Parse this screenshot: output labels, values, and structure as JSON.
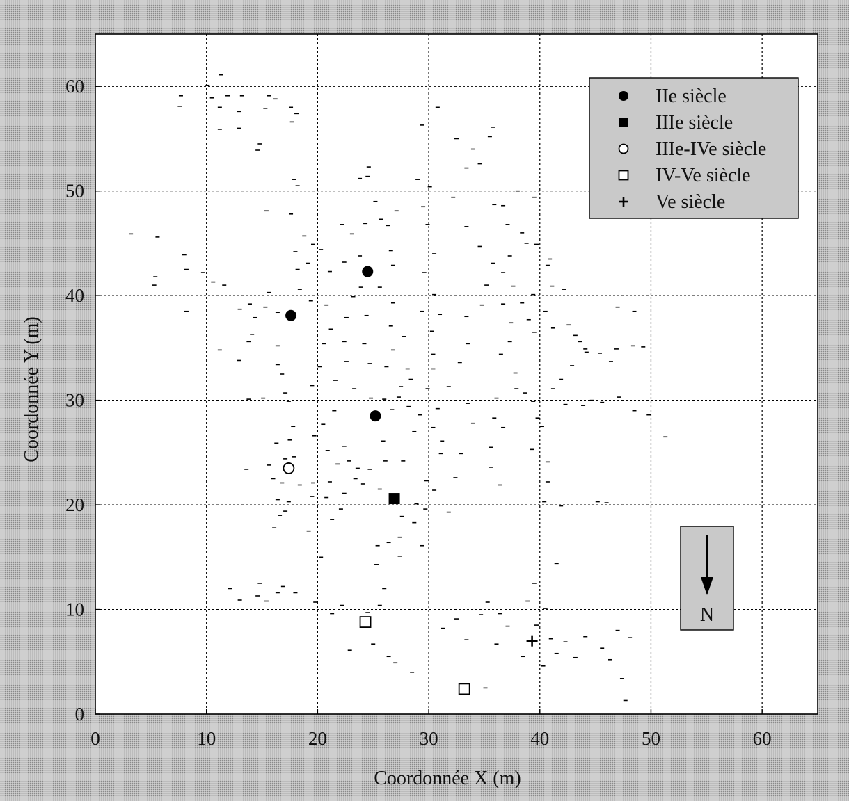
{
  "chart_data": {
    "type": "scatter",
    "title": "",
    "xlabel": "Coordonnée X (m)",
    "ylabel": "Coordonnée Y (m)",
    "xlim": [
      0,
      65
    ],
    "ylim": [
      0,
      65
    ],
    "xticks": [
      0,
      10,
      20,
      30,
      40,
      50,
      60
    ],
    "yticks": [
      0,
      10,
      20,
      30,
      40,
      50,
      60
    ],
    "grid": true,
    "legend_position": "top-right",
    "colors": {
      "marker": "#000000",
      "plot_bg": "#ffffff",
      "grid": "#000000"
    },
    "series": [
      {
        "name": "IIe siècle",
        "marker": "filled-circle",
        "points": [
          [
            17.6,
            38.1
          ],
          [
            24.5,
            42.3
          ],
          [
            25.2,
            28.5
          ]
        ]
      },
      {
        "name": "IIIe siècle",
        "marker": "filled-square",
        "points": [
          [
            26.9,
            20.6
          ]
        ]
      },
      {
        "name": "IIIe-IVe siècle",
        "marker": "open-circle",
        "points": [
          [
            17.4,
            23.5
          ]
        ]
      },
      {
        "name": "IV-Ve siècle",
        "marker": "open-square",
        "points": [
          [
            24.3,
            8.8
          ],
          [
            33.2,
            2.4
          ]
        ]
      },
      {
        "name": "Ve siècle",
        "marker": "plus",
        "points": [
          [
            39.3,
            7.0
          ]
        ]
      }
    ],
    "background_dashes": [
      [
        11.3,
        61.1
      ],
      [
        10.1,
        60.1
      ],
      [
        11.9,
        59.1
      ],
      [
        7.7,
        59.1
      ],
      [
        13.2,
        59.1
      ],
      [
        15.6,
        59.1
      ],
      [
        10.5,
        58.9
      ],
      [
        16.2,
        58.8
      ],
      [
        7.6,
        58.1
      ],
      [
        11.2,
        58.0
      ],
      [
        12.9,
        57.6
      ],
      [
        15.3,
        57.9
      ],
      [
        17.6,
        58.0
      ],
      [
        18.1,
        57.4
      ],
      [
        11.2,
        55.9
      ],
      [
        12.9,
        56.0
      ],
      [
        17.7,
        56.6
      ],
      [
        14.8,
        54.5
      ],
      [
        14.6,
        53.9
      ],
      [
        17.9,
        51.1
      ],
      [
        18.2,
        50.5
      ],
      [
        15.4,
        48.1
      ],
      [
        17.6,
        47.8
      ],
      [
        3.2,
        45.9
      ],
      [
        5.6,
        45.6
      ],
      [
        8.0,
        43.9
      ],
      [
        5.4,
        41.8
      ],
      [
        5.3,
        41.0
      ],
      [
        8.2,
        42.5
      ],
      [
        9.7,
        42.2
      ],
      [
        10.6,
        41.3
      ],
      [
        11.6,
        41.0
      ],
      [
        8.2,
        38.5
      ],
      [
        13.0,
        38.7
      ],
      [
        11.2,
        34.8
      ],
      [
        12.9,
        33.8
      ],
      [
        13.8,
        35.6
      ],
      [
        13.9,
        39.2
      ],
      [
        14.4,
        37.9
      ],
      [
        14.1,
        36.3
      ],
      [
        15.3,
        38.9
      ],
      [
        16.4,
        38.4
      ],
      [
        15.6,
        40.3
      ],
      [
        16.4,
        35.2
      ],
      [
        13.8,
        30.1
      ],
      [
        15.1,
        30.2
      ],
      [
        16.4,
        33.4
      ],
      [
        16.8,
        32.5
      ],
      [
        17.1,
        30.7
      ],
      [
        17.4,
        29.9
      ],
      [
        15.6,
        23.8
      ],
      [
        13.6,
        23.4
      ],
      [
        16.0,
        22.5
      ],
      [
        16.3,
        25.9
      ],
      [
        17.5,
        26.2
      ],
      [
        17.1,
        24.4
      ],
      [
        17.8,
        27.5
      ],
      [
        16.8,
        22.1
      ],
      [
        16.4,
        20.5
      ],
      [
        16.6,
        19.0
      ],
      [
        16.1,
        17.8
      ],
      [
        17.1,
        19.4
      ],
      [
        17.4,
        20.3
      ],
      [
        18.4,
        21.9
      ],
      [
        17.9,
        24.6
      ],
      [
        19.7,
        26.6
      ],
      [
        19.6,
        22.1
      ],
      [
        19.5,
        20.8
      ],
      [
        18.4,
        40.6
      ],
      [
        18.2,
        42.5
      ],
      [
        18.0,
        44.2
      ],
      [
        19.1,
        43.1
      ],
      [
        19.6,
        44.9
      ],
      [
        18.8,
        45.7
      ],
      [
        20.3,
        44.4
      ],
      [
        21.1,
        42.3
      ],
      [
        19.4,
        39.5
      ],
      [
        20.8,
        39.1
      ],
      [
        21.2,
        36.8
      ],
      [
        20.6,
        35.4
      ],
      [
        20.2,
        33.2
      ],
      [
        19.5,
        31.4
      ],
      [
        21.6,
        31.9
      ],
      [
        22.6,
        33.7
      ],
      [
        22.4,
        35.6
      ],
      [
        22.6,
        37.9
      ],
      [
        23.2,
        39.9
      ],
      [
        23.9,
        40.8
      ],
      [
        24.4,
        38.1
      ],
      [
        24.2,
        35.4
      ],
      [
        24.7,
        33.5
      ],
      [
        23.3,
        31.1
      ],
      [
        24.8,
        30.2
      ],
      [
        26.0,
        30.1
      ],
      [
        27.3,
        30.3
      ],
      [
        21.5,
        29.0
      ],
      [
        20.5,
        27.7
      ],
      [
        20.9,
        25.2
      ],
      [
        21.8,
        23.9
      ],
      [
        22.4,
        25.6
      ],
      [
        23.4,
        22.5
      ],
      [
        22.4,
        21.1
      ],
      [
        22.1,
        19.6
      ],
      [
        20.8,
        20.7
      ],
      [
        21.3,
        18.6
      ],
      [
        19.2,
        17.5
      ],
      [
        22.2,
        46.8
      ],
      [
        23.1,
        45.9
      ],
      [
        23.8,
        43.8
      ],
      [
        22.4,
        43.2
      ],
      [
        24.3,
        46.9
      ],
      [
        25.7,
        47.3
      ],
      [
        26.3,
        46.7
      ],
      [
        27.1,
        48.1
      ],
      [
        25.2,
        49.0
      ],
      [
        24.5,
        51.4
      ],
      [
        24.6,
        52.3
      ],
      [
        23.8,
        51.2
      ],
      [
        26.6,
        44.3
      ],
      [
        26.8,
        42.9
      ],
      [
        25.6,
        40.8
      ],
      [
        26.8,
        39.3
      ],
      [
        26.6,
        37.1
      ],
      [
        27.8,
        36.1
      ],
      [
        26.8,
        34.8
      ],
      [
        26.2,
        33.2
      ],
      [
        28.1,
        33.0
      ],
      [
        28.4,
        32.0
      ],
      [
        27.5,
        31.3
      ],
      [
        25.9,
        26.1
      ],
      [
        26.1,
        24.2
      ],
      [
        24.7,
        23.4
      ],
      [
        24.1,
        22.0
      ],
      [
        25.6,
        21.5
      ],
      [
        27.7,
        24.2
      ],
      [
        28.7,
        27.0
      ],
      [
        26.7,
        29.1
      ],
      [
        28.2,
        29.4
      ],
      [
        29.2,
        28.6
      ],
      [
        28.7,
        18.3
      ],
      [
        27.4,
        16.9
      ],
      [
        29.4,
        16.1
      ],
      [
        26.4,
        16.4
      ],
      [
        25.4,
        16.1
      ],
      [
        25.3,
        14.3
      ],
      [
        26.0,
        12.0
      ],
      [
        27.4,
        15.1
      ],
      [
        27.6,
        18.9
      ],
      [
        28.9,
        20.1
      ],
      [
        29.0,
        51.1
      ],
      [
        30.1,
        50.4
      ],
      [
        29.5,
        48.5
      ],
      [
        29.9,
        46.8
      ],
      [
        30.5,
        44.0
      ],
      [
        29.6,
        42.2
      ],
      [
        30.5,
        40.1
      ],
      [
        29.4,
        38.5
      ],
      [
        31.0,
        38.2
      ],
      [
        30.3,
        36.6
      ],
      [
        30.4,
        34.4
      ],
      [
        30.4,
        33.0
      ],
      [
        29.9,
        31.1
      ],
      [
        30.8,
        29.2
      ],
      [
        30.4,
        27.4
      ],
      [
        31.2,
        26.1
      ],
      [
        31.1,
        24.9
      ],
      [
        29.8,
        22.3
      ],
      [
        30.5,
        21.4
      ],
      [
        29.7,
        19.6
      ],
      [
        31.8,
        19.3
      ],
      [
        32.4,
        22.6
      ],
      [
        32.9,
        24.9
      ],
      [
        34.0,
        27.8
      ],
      [
        33.5,
        29.7
      ],
      [
        31.8,
        31.3
      ],
      [
        32.8,
        33.6
      ],
      [
        33.5,
        35.4
      ],
      [
        33.4,
        38.0
      ],
      [
        34.8,
        39.1
      ],
      [
        35.2,
        41.0
      ],
      [
        35.8,
        43.1
      ],
      [
        34.6,
        44.7
      ],
      [
        33.4,
        46.6
      ],
      [
        32.2,
        49.4
      ],
      [
        33.4,
        52.2
      ],
      [
        34.6,
        52.6
      ],
      [
        34.0,
        54.0
      ],
      [
        35.5,
        55.2
      ],
      [
        35.8,
        56.1
      ],
      [
        32.5,
        55.0
      ],
      [
        30.8,
        58.0
      ],
      [
        29.4,
        56.3
      ],
      [
        35.9,
        48.7
      ],
      [
        36.7,
        48.6
      ],
      [
        37.1,
        46.8
      ],
      [
        38.4,
        46.0
      ],
      [
        38.8,
        45.0
      ],
      [
        39.7,
        44.9
      ],
      [
        37.3,
        43.8
      ],
      [
        36.7,
        42.2
      ],
      [
        37.6,
        40.9
      ],
      [
        36.7,
        39.2
      ],
      [
        37.4,
        37.4
      ],
      [
        37.3,
        35.6
      ],
      [
        36.5,
        34.4
      ],
      [
        37.8,
        32.6
      ],
      [
        37.9,
        31.1
      ],
      [
        36.1,
        30.2
      ],
      [
        35.9,
        28.3
      ],
      [
        36.7,
        27.4
      ],
      [
        35.6,
        25.5
      ],
      [
        35.6,
        23.6
      ],
      [
        36.4,
        21.9
      ],
      [
        38.7,
        30.7
      ],
      [
        39.4,
        29.9
      ],
      [
        39.8,
        28.3
      ],
      [
        40.2,
        27.5
      ],
      [
        39.3,
        25.3
      ],
      [
        40.7,
        24.1
      ],
      [
        40.7,
        22.2
      ],
      [
        40.4,
        20.3
      ],
      [
        41.9,
        19.9
      ],
      [
        41.5,
        14.4
      ],
      [
        39.5,
        12.5
      ],
      [
        38.9,
        10.8
      ],
      [
        40.5,
        10.1
      ],
      [
        39.7,
        8.5
      ],
      [
        37.1,
        8.4
      ],
      [
        36.4,
        9.6
      ],
      [
        35.3,
        10.7
      ],
      [
        34.7,
        9.5
      ],
      [
        33.4,
        7.1
      ],
      [
        36.1,
        6.7
      ],
      [
        38.5,
        5.5
      ],
      [
        40.3,
        4.6
      ],
      [
        41.5,
        5.8
      ],
      [
        42.3,
        6.9
      ],
      [
        41.0,
        7.2
      ],
      [
        43.2,
        5.4
      ],
      [
        44.1,
        7.4
      ],
      [
        45.6,
        6.3
      ],
      [
        46.3,
        5.2
      ],
      [
        47.0,
        8.0
      ],
      [
        48.1,
        7.3
      ],
      [
        47.4,
        3.4
      ],
      [
        47.7,
        1.3
      ],
      [
        38.4,
        39.3
      ],
      [
        39.0,
        37.7
      ],
      [
        39.5,
        36.5
      ],
      [
        40.5,
        38.5
      ],
      [
        41.2,
        36.9
      ],
      [
        42.6,
        37.2
      ],
      [
        43.6,
        35.6
      ],
      [
        44.2,
        34.6
      ],
      [
        42.9,
        33.3
      ],
      [
        41.9,
        32.0
      ],
      [
        41.2,
        31.1
      ],
      [
        42.3,
        29.6
      ],
      [
        43.9,
        29.5
      ],
      [
        44.7,
        30.0
      ],
      [
        45.6,
        29.8
      ],
      [
        47.1,
        30.3
      ],
      [
        48.5,
        29.0
      ],
      [
        49.8,
        28.6
      ],
      [
        46.9,
        34.9
      ],
      [
        48.4,
        35.2
      ],
      [
        49.3,
        35.1
      ],
      [
        48.5,
        38.5
      ],
      [
        47.0,
        38.9
      ],
      [
        40.9,
        43.5
      ],
      [
        40.7,
        42.9
      ],
      [
        41.1,
        40.9
      ],
      [
        42.2,
        40.6
      ],
      [
        43.2,
        36.2
      ],
      [
        44.1,
        34.9
      ],
      [
        45.4,
        34.5
      ],
      [
        46.4,
        33.7
      ],
      [
        39.4,
        40.1
      ],
      [
        38.0,
        50.0
      ],
      [
        39.5,
        49.4
      ],
      [
        51.3,
        26.5
      ],
      [
        45.2,
        20.3
      ],
      [
        46.0,
        20.2
      ],
      [
        28.5,
        4.0
      ],
      [
        27.0,
        4.9
      ],
      [
        26.4,
        5.5
      ],
      [
        25.0,
        6.7
      ],
      [
        22.9,
        6.1
      ],
      [
        24.5,
        9.7
      ],
      [
        25.6,
        10.4
      ],
      [
        22.2,
        10.4
      ],
      [
        21.3,
        9.6
      ],
      [
        19.8,
        10.7
      ],
      [
        18.0,
        11.6
      ],
      [
        16.4,
        11.6
      ],
      [
        16.9,
        12.2
      ],
      [
        14.8,
        12.5
      ],
      [
        15.4,
        10.8
      ],
      [
        14.6,
        11.3
      ],
      [
        13.0,
        10.9
      ],
      [
        12.1,
        12.0
      ],
      [
        35.1,
        2.5
      ],
      [
        31.3,
        8.2
      ],
      [
        32.5,
        9.1
      ],
      [
        20.3,
        15.0
      ],
      [
        21.1,
        22.2
      ],
      [
        23.6,
        23.5
      ],
      [
        22.8,
        24.2
      ]
    ]
  },
  "legend": {
    "items": [
      {
        "label": "IIe siècle"
      },
      {
        "label": "IIIe siècle"
      },
      {
        "label": "IIIe-IVe siècle"
      },
      {
        "label": "IV-Ve siècle"
      },
      {
        "label": "Ve siècle"
      }
    ]
  },
  "compass": {
    "label": "N"
  }
}
